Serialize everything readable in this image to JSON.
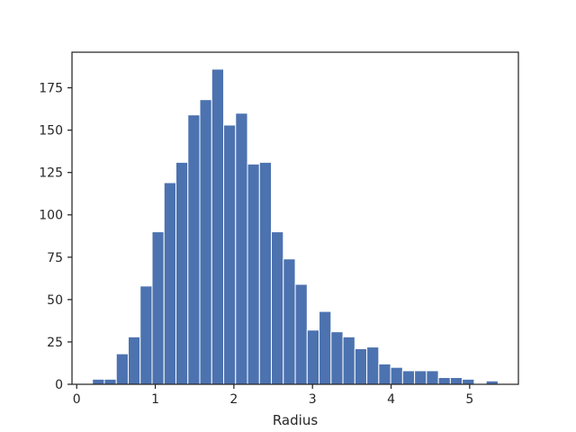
{
  "chart_data": {
    "type": "bar",
    "subtype": "histogram",
    "title": "",
    "xlabel": "Radius",
    "ylabel": "",
    "xlim": [
      -0.06,
      5.62
    ],
    "ylim": [
      0,
      196
    ],
    "xticks": [
      0,
      1,
      2,
      3,
      4,
      5
    ],
    "yticks": [
      0,
      25,
      50,
      75,
      100,
      125,
      150,
      175
    ],
    "grid": false,
    "color": "#4c72b0",
    "bin_start": 0.2,
    "bin_width": 0.1518,
    "counts": [
      3,
      3,
      18,
      28,
      58,
      90,
      119,
      131,
      159,
      168,
      186,
      153,
      160,
      130,
      131,
      90,
      74,
      59,
      32,
      43,
      31,
      28,
      21,
      22,
      12,
      10,
      8,
      8,
      8,
      4,
      4,
      3,
      0,
      2
    ]
  }
}
